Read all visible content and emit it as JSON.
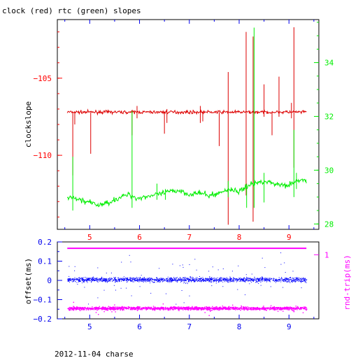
{
  "chart_data": [
    {
      "type": "line",
      "title": "clock (red) rtc (green) slopes",
      "xlabel": "",
      "ylabel": "clockslope",
      "xlim": [
        4.35,
        9.6
      ],
      "xticks": [
        5,
        6,
        7,
        8,
        9
      ],
      "grid": false,
      "left_axis": {
        "ylim": [
          -114.8,
          -101.2
        ],
        "ticks": [
          -110,
          -105
        ],
        "color": "#ff0000"
      },
      "right_axis": {
        "ylim": [
          27.8,
          35.6
        ],
        "ticks": [
          28,
          30,
          32,
          34
        ],
        "color": "#00ee00"
      },
      "series": [
        {
          "name": "clock",
          "color": "#dd0000",
          "axis": "left",
          "baseline": [
            [
              4.55,
              -107.2
            ],
            [
              5.0,
              -107.2
            ],
            [
              6.0,
              -107.2
            ],
            [
              7.0,
              -107.2
            ],
            [
              8.0,
              -107.2
            ],
            [
              9.0,
              -107.2
            ],
            [
              9.35,
              -107.2
            ]
          ],
          "spikes": [
            [
              4.66,
              -107.2,
              -111.3
            ],
            [
              4.7,
              -107.2,
              -108.0
            ],
            [
              5.02,
              -107.2,
              -109.9
            ],
            [
              5.85,
              -107.2,
              -108.7
            ],
            [
              5.95,
              -106.8,
              -107.6
            ],
            [
              6.5,
              -107.2,
              -108.6
            ],
            [
              6.55,
              -107.0,
              -107.9
            ],
            [
              7.22,
              -106.8,
              -107.9
            ],
            [
              7.27,
              -107.2,
              -107.8
            ],
            [
              7.6,
              -107.2,
              -109.4
            ],
            [
              7.78,
              -104.6,
              -114.5
            ],
            [
              8.14,
              -102.0,
              -112.6
            ],
            [
              8.28,
              -102.3,
              -114.3
            ],
            [
              8.5,
              -105.4,
              -107.5
            ],
            [
              8.66,
              -107.2,
              -108.7
            ],
            [
              8.8,
              -104.9,
              -107.5
            ],
            [
              9.05,
              -106.6,
              -107.6
            ],
            [
              9.1,
              -101.7,
              -110.8
            ]
          ]
        },
        {
          "name": "rtc",
          "color": "#00ee00",
          "axis": "right",
          "baseline": [
            [
              4.55,
              29.0
            ],
            [
              4.8,
              28.9
            ],
            [
              5.0,
              28.8
            ],
            [
              5.15,
              28.7
            ],
            [
              5.3,
              28.75
            ],
            [
              5.5,
              28.9
            ],
            [
              5.7,
              29.05
            ],
            [
              5.8,
              29.1
            ],
            [
              5.95,
              28.95
            ],
            [
              6.2,
              29.05
            ],
            [
              6.4,
              29.1
            ],
            [
              6.6,
              29.2
            ],
            [
              6.8,
              29.25
            ],
            [
              7.0,
              29.1
            ],
            [
              7.2,
              29.15
            ],
            [
              7.4,
              29.05
            ],
            [
              7.6,
              29.15
            ],
            [
              7.8,
              29.3
            ],
            [
              8.0,
              29.2
            ],
            [
              8.2,
              29.45
            ],
            [
              8.4,
              29.55
            ],
            [
              8.5,
              29.6
            ],
            [
              8.7,
              29.5
            ],
            [
              8.9,
              29.45
            ],
            [
              9.1,
              29.5
            ],
            [
              9.2,
              29.65
            ],
            [
              9.35,
              29.6
            ]
          ],
          "spikes": [
            [
              4.66,
              30.5,
              28.5
            ],
            [
              5.85,
              32.2,
              28.6
            ],
            [
              6.35,
              29.5,
              28.9
            ],
            [
              6.52,
              29.3,
              28.9
            ],
            [
              7.78,
              29.6,
              29.0
            ],
            [
              8.15,
              29.5,
              28.6
            ],
            [
              8.3,
              35.3,
              28.6
            ],
            [
              8.5,
              29.9,
              28.8
            ],
            [
              9.1,
              31.5,
              29.0
            ],
            [
              9.15,
              29.9,
              29.3
            ]
          ]
        }
      ]
    },
    {
      "type": "scatter",
      "title": "",
      "xlabel": "2012-11-04 charse",
      "xlim": [
        4.35,
        9.6
      ],
      "xticks": [
        5,
        6,
        7,
        8,
        9
      ],
      "grid": false,
      "left_axis": {
        "ylabel": "offset(ms)",
        "ylim": [
          -0.2,
          0.2
        ],
        "ticks": [
          -0.2,
          -0.1,
          0,
          0.1,
          0.2
        ],
        "color": "#0000ee"
      },
      "right_axis": {
        "ylabel": "rnd-trip(ms)",
        "ylim": [
          0,
          1.2
        ],
        "ticks": [
          1
        ],
        "color": "#ff00ff"
      },
      "series": [
        {
          "name": "offset",
          "color": "#0000ff",
          "axis": "left",
          "x_range": [
            4.55,
            9.35
          ],
          "center": 0.005,
          "spread": 0.012
        },
        {
          "name": "rnd-trip",
          "color": "#ff00ff",
          "axis": "right",
          "x_range": [
            4.55,
            9.35
          ],
          "bands": [
            1.1,
            0.17
          ]
        }
      ]
    }
  ]
}
